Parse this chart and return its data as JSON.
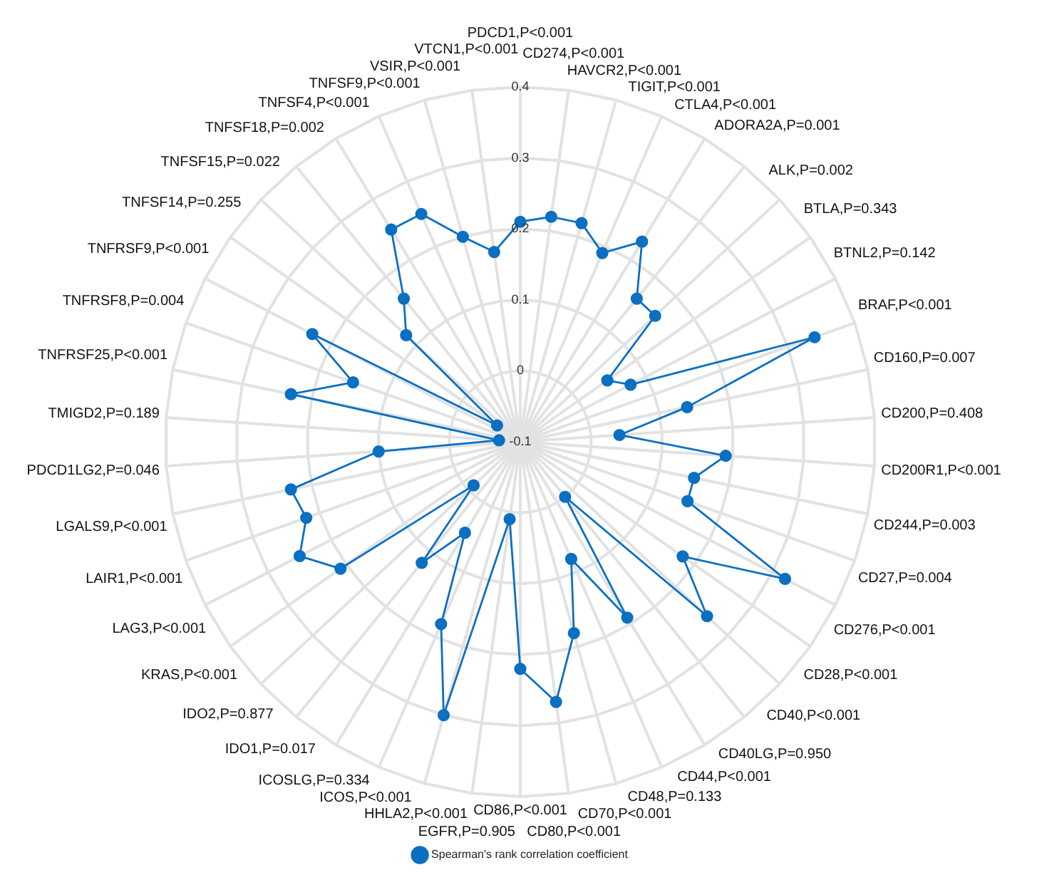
{
  "chart_data": {
    "type": "radar",
    "categories": [
      "PDCD1,P<0.001",
      "CD274,P<0.001",
      "HAVCR2,P<0.001",
      "TIGIT,P<0.001",
      "CTLA4,P<0.001",
      "ADORA2A,P=0.001",
      "ALK,P=0.002",
      "BTLA,P=0.343",
      "BTNL2,P=0.142",
      "BRAF,P<0.001",
      "CD160,P=0.007",
      "CD200,P=0.408",
      "CD200R1,P<0.001",
      "CD244,P=0.003",
      "CD27,P=0.004",
      "CD276,P<0.001",
      "CD28,P<0.001",
      "CD40,P<0.001",
      "CD40LG,P=0.950",
      "CD44,P<0.001",
      "CD48,P=0.133",
      "CD70,P<0.001",
      "CD80,P<0.001",
      "CD86,P<0.001",
      "EGFR,P=0.905",
      "HHLA2,P<0.001",
      "ICOS,P<0.001",
      "ICOSLG,P=0.334",
      "IDO1,P=0.017",
      "IDO2,P=0.877",
      "KRAS,P<0.001",
      "LAG3,P<0.001",
      "LAIR1,P<0.001",
      "LGALS9,P<0.001",
      "PDCD1LG2,P=0.046",
      "TMIGD2,P=0.189",
      "TNFRSF25,P<0.001",
      "TNFRSF8,P=0.004",
      "TNFRSF9,P<0.001",
      "TNFSF14,P=0.255",
      "TNFSF15,P=0.022",
      "TNFSF18,P=0.002",
      "TNFSF4,P<0.001",
      "TNFSF9,P<0.001",
      "VSIR,P<0.001",
      "VTCN1,P<0.001"
    ],
    "series": [
      {
        "name": "Spearman's rank correlation coefficient",
        "color": "#0b6fc2",
        "values": [
          0.21,
          0.22,
          0.22,
          0.19,
          0.23,
          0.16,
          0.16,
          0.05,
          0.075,
          0.34,
          0.14,
          0.04,
          0.19,
          0.15,
          0.15,
          0.32,
          0.18,
          0.26,
          0.0,
          0.19,
          0.08,
          0.18,
          0.27,
          0.22,
          0.01,
          0.3,
          0.18,
          0.05,
          0.12,
          -0.01,
          0.21,
          0.25,
          0.22,
          0.23,
          0.1,
          -0.07,
          0.23,
          0.15,
          0.23,
          -0.06,
          0.12,
          0.16,
          0.25,
          0.25,
          0.2,
          0.17
        ]
      }
    ],
    "ylim": [
      -0.1,
      0.4
    ],
    "yticks": [
      -0.1,
      0,
      0.1,
      0.2,
      0.3,
      0.4
    ],
    "grid": true,
    "legend": "bottom",
    "marker": "circle",
    "line_style": "solid"
  }
}
